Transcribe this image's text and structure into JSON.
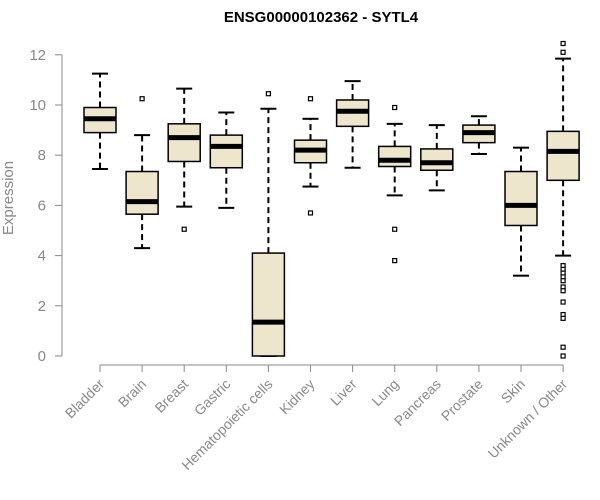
{
  "chart_data": {
    "type": "box",
    "title": "ENSG00000102362 - SYTL4",
    "xlabel": "",
    "ylabel": "Expression",
    "ylim": [
      0,
      12.4
    ],
    "yticks": [
      0,
      2,
      4,
      6,
      8,
      10,
      12
    ],
    "grid": false,
    "colors": {
      "box_fill": "#ede6cc",
      "median": "#000000",
      "whisker": "#000000",
      "axis": "#888888"
    },
    "categories": [
      "Bladder",
      "Brain",
      "Breast",
      "Gastric",
      "Hematopoietic cells",
      "Kidney",
      "Liver",
      "Lung",
      "Pancreas",
      "Prostate",
      "Skin",
      "Unknown / Other"
    ],
    "boxes": [
      {
        "name": "Bladder",
        "min": 7.45,
        "q1": 8.9,
        "median": 9.45,
        "q3": 9.9,
        "max": 11.25,
        "outliers": []
      },
      {
        "name": "Brain",
        "min": 4.3,
        "q1": 5.65,
        "median": 6.15,
        "q3": 7.35,
        "max": 8.8,
        "outliers": [
          10.25
        ]
      },
      {
        "name": "Breast",
        "min": 5.95,
        "q1": 7.75,
        "median": 8.7,
        "q3": 9.25,
        "max": 10.65,
        "outliers": [
          5.05
        ]
      },
      {
        "name": "Gastric",
        "min": 5.9,
        "q1": 7.5,
        "median": 8.35,
        "q3": 8.8,
        "max": 9.7,
        "outliers": []
      },
      {
        "name": "Hematopoietic cells",
        "min": 0.0,
        "q1": 0.0,
        "median": 1.35,
        "q3": 4.1,
        "max": 9.85,
        "outliers": [
          10.45
        ]
      },
      {
        "name": "Kidney",
        "min": 6.75,
        "q1": 7.7,
        "median": 8.2,
        "q3": 8.6,
        "max": 9.45,
        "outliers": [
          10.25,
          5.7
        ]
      },
      {
        "name": "Liver",
        "min": 7.5,
        "q1": 9.15,
        "median": 9.75,
        "q3": 10.2,
        "max": 10.95,
        "outliers": []
      },
      {
        "name": "Lung",
        "min": 6.4,
        "q1": 7.55,
        "median": 7.8,
        "q3": 8.35,
        "max": 9.25,
        "outliers": [
          9.9,
          5.05,
          3.8
        ]
      },
      {
        "name": "Pancreas",
        "min": 6.6,
        "q1": 7.4,
        "median": 7.7,
        "q3": 8.25,
        "max": 9.2,
        "outliers": []
      },
      {
        "name": "Prostate",
        "min": 8.05,
        "q1": 8.5,
        "median": 8.9,
        "q3": 9.2,
        "max": 9.55,
        "outliers": []
      },
      {
        "name": "Skin",
        "min": 3.2,
        "q1": 5.2,
        "median": 6.0,
        "q3": 7.35,
        "max": 8.3,
        "outliers": []
      },
      {
        "name": "Unknown / Other",
        "min": 4.0,
        "q1": 7.0,
        "median": 8.15,
        "q3": 8.95,
        "max": 11.85,
        "outliers": [
          12.45,
          12.1,
          3.6,
          3.45,
          3.3,
          3.15,
          3.0,
          2.75,
          2.6,
          2.15,
          1.65,
          1.5,
          0.35,
          0.0
        ]
      }
    ]
  }
}
